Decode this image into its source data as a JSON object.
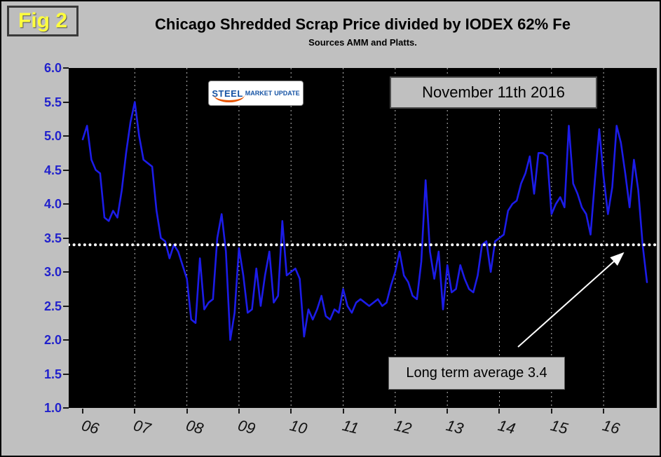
{
  "figure": {
    "fig_label": "Fig 2",
    "title": "Chicago Shredded Scrap Price divided by IODEX 62% Fe",
    "subtitle": "Sources AMM and Platts.",
    "annotations": {
      "date_box": "November 11th 2016",
      "average_box": "Long term average 3.4"
    },
    "logo": {
      "word1": "STEEL",
      "word2": "MARKET",
      "word3": "UPDATE"
    }
  },
  "colors": {
    "figure_bg": "#c0c0c0",
    "plot_bg": "#000000",
    "series_line": "#1c1ce8",
    "y_axis_labels": "#2121cc",
    "average_line": "#ffffff",
    "fig_label_text": "#ffff3d",
    "gridline": "#b8b8b8",
    "arrow": "#ffffff",
    "logo_accent": "#e65300",
    "logo_text": "#1553a4"
  },
  "chart_data": {
    "type": "line",
    "title": "Chicago Shredded Scrap Price divided by IODEX 62% Fe",
    "subtitle": "Sources AMM and Platts.",
    "xlabel": "",
    "ylabel": "",
    "ylim": [
      1.0,
      6.0
    ],
    "y_tick_labels": [
      "6.0",
      "5.5",
      "5.0",
      "4.5",
      "4.0",
      "3.5",
      "3.0",
      "2.5",
      "2.0",
      "1.5",
      "1.0"
    ],
    "x_tick_labels": [
      "06",
      "07",
      "08",
      "09",
      "10",
      "11",
      "12",
      "13",
      "14",
      "15",
      "16"
    ],
    "average_line": 3.4,
    "average_label": "Long term average 3.4",
    "grid": "vertical-dashed",
    "legend": "none",
    "plot_background": "black",
    "series": [
      {
        "name": "Chicago Shredded Scrap Price / IODEX 62% Fe",
        "start": "2006-01",
        "end": "2016-11",
        "frequency": "monthly",
        "values": [
          4.95,
          5.15,
          4.65,
          4.5,
          4.45,
          3.8,
          3.75,
          3.9,
          3.8,
          4.2,
          4.75,
          5.2,
          5.5,
          5.0,
          4.65,
          4.6,
          4.55,
          3.9,
          3.5,
          3.45,
          3.2,
          3.4,
          3.3,
          3.1,
          2.9,
          2.3,
          2.25,
          3.2,
          2.45,
          2.55,
          2.6,
          3.5,
          3.85,
          3.3,
          2.0,
          2.4,
          3.35,
          2.95,
          2.4,
          2.45,
          3.05,
          2.5,
          2.95,
          3.3,
          2.55,
          2.65,
          3.75,
          2.95,
          3.0,
          3.05,
          2.9,
          2.05,
          2.45,
          2.3,
          2.45,
          2.65,
          2.35,
          2.3,
          2.45,
          2.4,
          2.75,
          2.5,
          2.4,
          2.55,
          2.6,
          2.55,
          2.5,
          2.55,
          2.6,
          2.5,
          2.55,
          2.8,
          3.0,
          3.3,
          2.95,
          2.85,
          2.65,
          2.6,
          3.15,
          4.35,
          3.3,
          2.9,
          3.3,
          2.45,
          3.1,
          2.7,
          2.75,
          3.1,
          2.9,
          2.75,
          2.7,
          2.95,
          3.4,
          3.45,
          3.0,
          3.45,
          3.5,
          3.55,
          3.9,
          4.0,
          4.05,
          4.3,
          4.45,
          4.7,
          4.15,
          4.75,
          4.75,
          4.7,
          3.85,
          4.0,
          4.1,
          3.95,
          5.15,
          4.3,
          4.15,
          3.95,
          3.85,
          3.55,
          4.35,
          5.1,
          4.4,
          3.85,
          4.25,
          5.15,
          4.9,
          4.45,
          3.95,
          4.65,
          4.2,
          3.4,
          2.85
        ]
      }
    ]
  }
}
